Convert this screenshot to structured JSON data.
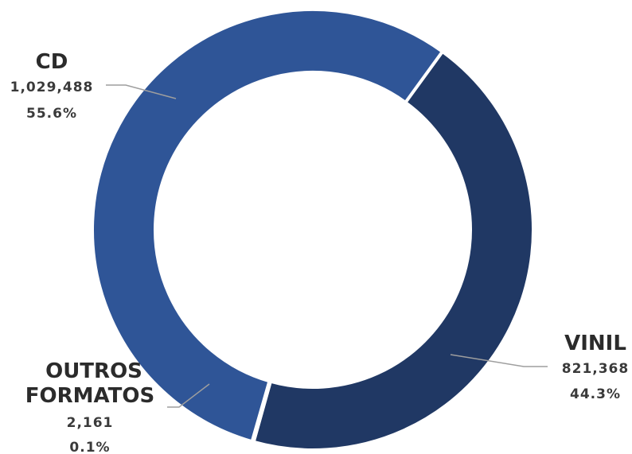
{
  "chart_data": {
    "type": "pie",
    "variant": "donut",
    "series": [
      {
        "name": "CD",
        "value": 1029488,
        "value_label": "1,029,488",
        "percent_label": "55.6%",
        "color": "#2f5597"
      },
      {
        "name": "VINIL",
        "value": 821368,
        "value_label": "821,368",
        "percent_label": "44.3%",
        "color": "#203864"
      },
      {
        "name": "OUTROS FORMATOS",
        "name_lines": [
          "OUTROS",
          "FORMATOS"
        ],
        "value": 2161,
        "value_label": "2,161",
        "percent_label": "0.1%",
        "color": "#2f5597"
      }
    ],
    "legend": "none",
    "separator_color": "#ffffff"
  }
}
